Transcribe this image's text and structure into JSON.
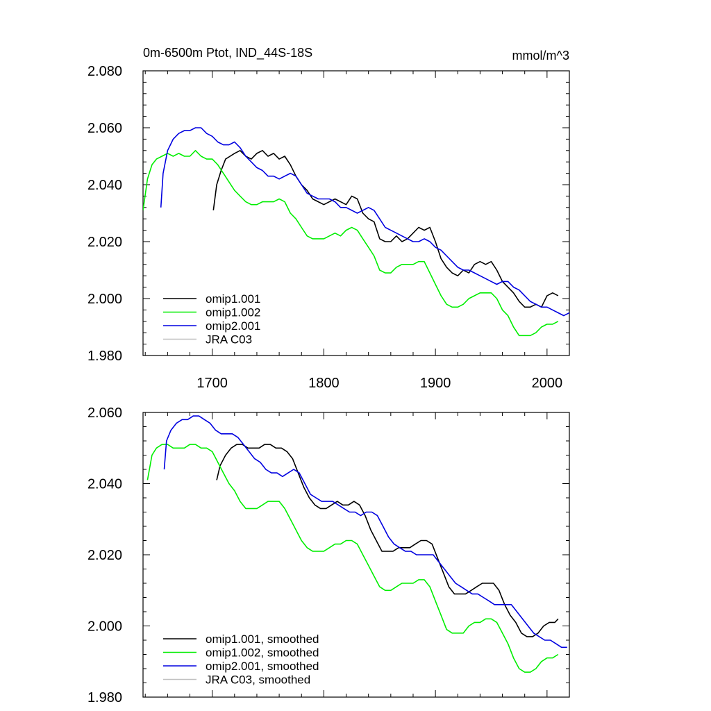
{
  "colors": {
    "omip1_001": "#000000",
    "omip1_002": "#00ee00",
    "omip2_001": "#0000e0",
    "jra_c03": "#c0c0c0"
  },
  "chart_data": [
    {
      "type": "line",
      "title": "0m-6500m Ptot, IND_44S-18S",
      "units": "mmol/m^3",
      "xlim": [
        1638,
        2020
      ],
      "ylim": [
        1.98,
        2.08
      ],
      "yticks": [
        "1.980",
        "2.000",
        "2.020",
        "2.040",
        "2.060",
        "2.080"
      ],
      "xticks": [
        "1700",
        "1800",
        "1900",
        "2000"
      ],
      "grid": false,
      "legend_position": "bottom-left",
      "series": [
        {
          "name": "omip1.001",
          "color_key": "omip1_001",
          "x": [
            1701,
            1704,
            1708,
            1712,
            1716,
            1720,
            1725,
            1730,
            1735,
            1740,
            1745,
            1750,
            1755,
            1760,
            1765,
            1770,
            1775,
            1780,
            1785,
            1790,
            1795,
            1800,
            1805,
            1810,
            1815,
            1820,
            1825,
            1830,
            1835,
            1840,
            1845,
            1850,
            1855,
            1860,
            1865,
            1870,
            1875,
            1880,
            1885,
            1890,
            1895,
            1900,
            1905,
            1910,
            1915,
            1920,
            1925,
            1930,
            1935,
            1940,
            1945,
            1950,
            1955,
            1960,
            1965,
            1970,
            1975,
            1980,
            1985,
            1990,
            1995,
            2000,
            2005,
            2010
          ],
          "y": [
            2.031,
            2.04,
            2.045,
            2.049,
            2.05,
            2.051,
            2.052,
            2.05,
            2.049,
            2.051,
            2.052,
            2.05,
            2.051,
            2.049,
            2.05,
            2.047,
            2.043,
            2.04,
            2.038,
            2.035,
            2.034,
            2.033,
            2.034,
            2.035,
            2.034,
            2.033,
            2.036,
            2.035,
            2.03,
            2.028,
            2.027,
            2.021,
            2.02,
            2.02,
            2.022,
            2.02,
            2.021,
            2.023,
            2.025,
            2.024,
            2.025,
            2.02,
            2.014,
            2.011,
            2.009,
            2.008,
            2.01,
            2.009,
            2.012,
            2.013,
            2.012,
            2.013,
            2.01,
            2.006,
            2.004,
            2.002,
            1.999,
            1.997,
            1.997,
            1.998,
            1.997,
            2.001,
            2.002,
            2.001
          ]
        },
        {
          "name": "omip1.002",
          "color_key": "omip1_002",
          "x": [
            1638,
            1642,
            1646,
            1650,
            1655,
            1660,
            1665,
            1670,
            1675,
            1680,
            1685,
            1690,
            1695,
            1700,
            1705,
            1710,
            1715,
            1720,
            1725,
            1730,
            1735,
            1740,
            1745,
            1750,
            1755,
            1760,
            1765,
            1770,
            1775,
            1780,
            1785,
            1790,
            1795,
            1800,
            1805,
            1810,
            1815,
            1820,
            1825,
            1830,
            1835,
            1840,
            1845,
            1850,
            1855,
            1860,
            1865,
            1870,
            1875,
            1880,
            1885,
            1890,
            1895,
            1900,
            1905,
            1910,
            1915,
            1920,
            1925,
            1930,
            1935,
            1940,
            1945,
            1950,
            1955,
            1960,
            1965,
            1970,
            1975,
            1980,
            1985,
            1990,
            1995,
            2000,
            2005,
            2010
          ],
          "y": [
            2.031,
            2.042,
            2.047,
            2.049,
            2.05,
            2.051,
            2.05,
            2.051,
            2.05,
            2.05,
            2.052,
            2.05,
            2.049,
            2.049,
            2.047,
            2.044,
            2.041,
            2.038,
            2.036,
            2.034,
            2.033,
            2.033,
            2.034,
            2.034,
            2.034,
            2.035,
            2.034,
            2.03,
            2.028,
            2.025,
            2.022,
            2.021,
            2.021,
            2.021,
            2.022,
            2.023,
            2.022,
            2.024,
            2.025,
            2.024,
            2.021,
            2.018,
            2.015,
            2.01,
            2.009,
            2.009,
            2.011,
            2.012,
            2.012,
            2.012,
            2.013,
            2.013,
            2.009,
            2.005,
            2.001,
            1.998,
            1.997,
            1.997,
            1.998,
            2.0,
            2.001,
            2.002,
            2.002,
            2.002,
            2.0,
            1.996,
            1.994,
            1.99,
            1.987,
            1.987,
            1.987,
            1.988,
            1.99,
            1.991,
            1.991,
            1.992
          ]
        },
        {
          "name": "omip2.001",
          "color_key": "omip2_001",
          "x": [
            1654,
            1656,
            1660,
            1665,
            1670,
            1675,
            1680,
            1685,
            1690,
            1695,
            1700,
            1705,
            1710,
            1715,
            1720,
            1725,
            1730,
            1735,
            1740,
            1745,
            1750,
            1755,
            1760,
            1765,
            1770,
            1775,
            1780,
            1785,
            1790,
            1795,
            1800,
            1805,
            1810,
            1815,
            1820,
            1825,
            1830,
            1835,
            1840,
            1845,
            1850,
            1855,
            1860,
            1865,
            1870,
            1875,
            1880,
            1885,
            1890,
            1895,
            1900,
            1905,
            1910,
            1915,
            1920,
            1925,
            1930,
            1935,
            1940,
            1945,
            1950,
            1955,
            1960,
            1965,
            1970,
            1975,
            1980,
            1985,
            1990,
            1995,
            2000,
            2005,
            2010,
            2015,
            2020
          ],
          "y": [
            2.032,
            2.044,
            2.052,
            2.056,
            2.058,
            2.059,
            2.059,
            2.06,
            2.06,
            2.058,
            2.057,
            2.055,
            2.054,
            2.054,
            2.055,
            2.053,
            2.05,
            2.048,
            2.046,
            2.045,
            2.043,
            2.043,
            2.042,
            2.043,
            2.044,
            2.043,
            2.04,
            2.037,
            2.036,
            2.035,
            2.035,
            2.035,
            2.034,
            2.032,
            2.032,
            2.031,
            2.03,
            2.031,
            2.032,
            2.031,
            2.028,
            2.025,
            2.024,
            2.023,
            2.022,
            2.021,
            2.02,
            2.02,
            2.021,
            2.02,
            2.018,
            2.017,
            2.015,
            2.013,
            2.011,
            2.01,
            2.01,
            2.009,
            2.008,
            2.007,
            2.006,
            2.005,
            2.006,
            2.006,
            2.004,
            2.003,
            2.001,
            1.999,
            1.998,
            1.997,
            1.997,
            1.996,
            1.995,
            1.994,
            1.995
          ]
        },
        {
          "name": "JRA C03",
          "color_key": "jra_c03",
          "x": [],
          "y": []
        }
      ]
    },
    {
      "type": "line",
      "title": "",
      "units": "",
      "xlim": [
        1638,
        2020
      ],
      "ylim": [
        1.98,
        2.06
      ],
      "yticks": [
        "1.980",
        "2.000",
        "2.020",
        "2.040",
        "2.060"
      ],
      "xticks": [],
      "grid": false,
      "legend_position": "bottom-left",
      "series": [
        {
          "name": "omip1.001, smoothed",
          "color_key": "omip1_001",
          "x": [
            1704,
            1707,
            1712,
            1717,
            1722,
            1727,
            1732,
            1737,
            1742,
            1747,
            1752,
            1757,
            1762,
            1767,
            1772,
            1777,
            1782,
            1787,
            1792,
            1797,
            1802,
            1807,
            1812,
            1817,
            1822,
            1827,
            1832,
            1837,
            1842,
            1847,
            1852,
            1857,
            1862,
            1867,
            1872,
            1877,
            1882,
            1887,
            1892,
            1897,
            1902,
            1907,
            1912,
            1917,
            1922,
            1927,
            1932,
            1937,
            1942,
            1947,
            1952,
            1957,
            1962,
            1967,
            1972,
            1977,
            1982,
            1987,
            1992,
            1997,
            2002,
            2007,
            2010
          ],
          "y": [
            2.041,
            2.045,
            2.048,
            2.05,
            2.051,
            2.051,
            2.05,
            2.05,
            2.05,
            2.051,
            2.051,
            2.05,
            2.05,
            2.049,
            2.047,
            2.043,
            2.039,
            2.036,
            2.034,
            2.033,
            2.033,
            2.034,
            2.035,
            2.034,
            2.034,
            2.035,
            2.034,
            2.031,
            2.027,
            2.024,
            2.021,
            2.021,
            2.021,
            2.022,
            2.022,
            2.022,
            2.023,
            2.024,
            2.024,
            2.023,
            2.019,
            2.015,
            2.011,
            2.009,
            2.009,
            2.009,
            2.01,
            2.011,
            2.012,
            2.012,
            2.012,
            2.01,
            2.006,
            2.003,
            2.001,
            1.998,
            1.997,
            1.997,
            1.998,
            2.0,
            2.001,
            2.001,
            2.002
          ]
        },
        {
          "name": "omip1.002, smoothed",
          "color_key": "omip1_002",
          "x": [
            1642,
            1646,
            1650,
            1655,
            1660,
            1665,
            1670,
            1675,
            1680,
            1685,
            1690,
            1695,
            1700,
            1705,
            1710,
            1715,
            1720,
            1725,
            1730,
            1735,
            1740,
            1745,
            1750,
            1755,
            1760,
            1765,
            1770,
            1775,
            1780,
            1785,
            1790,
            1795,
            1800,
            1805,
            1810,
            1815,
            1820,
            1825,
            1830,
            1835,
            1840,
            1845,
            1850,
            1855,
            1860,
            1865,
            1870,
            1875,
            1880,
            1885,
            1890,
            1895,
            1900,
            1905,
            1910,
            1915,
            1920,
            1925,
            1930,
            1935,
            1940,
            1945,
            1950,
            1955,
            1960,
            1965,
            1970,
            1975,
            1980,
            1985,
            1990,
            1995,
            2000,
            2005,
            2010
          ],
          "y": [
            2.041,
            2.048,
            2.05,
            2.051,
            2.051,
            2.05,
            2.05,
            2.05,
            2.051,
            2.051,
            2.05,
            2.05,
            2.049,
            2.046,
            2.043,
            2.04,
            2.038,
            2.035,
            2.033,
            2.033,
            2.033,
            2.034,
            2.035,
            2.035,
            2.035,
            2.033,
            2.03,
            2.027,
            2.024,
            2.022,
            2.021,
            2.021,
            2.021,
            2.022,
            2.023,
            2.023,
            2.024,
            2.024,
            2.023,
            2.02,
            2.017,
            2.014,
            2.011,
            2.01,
            2.01,
            2.011,
            2.012,
            2.012,
            2.012,
            2.013,
            2.013,
            2.011,
            2.007,
            2.003,
            1.999,
            1.998,
            1.998,
            1.998,
            2.0,
            2.001,
            2.001,
            2.002,
            2.002,
            2.001,
            1.998,
            1.995,
            1.991,
            1.988,
            1.987,
            1.987,
            1.988,
            1.99,
            1.991,
            1.991,
            1.992
          ]
        },
        {
          "name": "omip2.001, smoothed",
          "color_key": "omip2_001",
          "x": [
            1657,
            1659,
            1663,
            1668,
            1673,
            1678,
            1683,
            1688,
            1693,
            1698,
            1703,
            1708,
            1713,
            1718,
            1723,
            1728,
            1733,
            1738,
            1743,
            1748,
            1753,
            1758,
            1763,
            1768,
            1773,
            1778,
            1783,
            1788,
            1793,
            1798,
            1803,
            1808,
            1813,
            1818,
            1823,
            1828,
            1833,
            1838,
            1843,
            1848,
            1853,
            1858,
            1863,
            1868,
            1873,
            1878,
            1883,
            1888,
            1893,
            1898,
            1903,
            1908,
            1913,
            1918,
            1923,
            1928,
            1933,
            1938,
            1943,
            1948,
            1953,
            1958,
            1963,
            1968,
            1973,
            1978,
            1983,
            1988,
            1993,
            1998,
            2003,
            2008,
            2013,
            2018
          ],
          "y": [
            2.044,
            2.052,
            2.055,
            2.057,
            2.058,
            2.058,
            2.059,
            2.059,
            2.058,
            2.057,
            2.055,
            2.054,
            2.054,
            2.054,
            2.053,
            2.051,
            2.049,
            2.047,
            2.046,
            2.044,
            2.043,
            2.043,
            2.042,
            2.043,
            2.044,
            2.043,
            2.04,
            2.037,
            2.036,
            2.035,
            2.035,
            2.035,
            2.034,
            2.033,
            2.032,
            2.032,
            2.031,
            2.032,
            2.032,
            2.031,
            2.028,
            2.025,
            2.023,
            2.022,
            2.021,
            2.021,
            2.02,
            2.02,
            2.02,
            2.02,
            2.018,
            2.016,
            2.014,
            2.012,
            2.011,
            2.01,
            2.009,
            2.009,
            2.008,
            2.007,
            2.006,
            2.006,
            2.006,
            2.006,
            2.004,
            2.002,
            2.0,
            1.998,
            1.997,
            1.996,
            1.996,
            1.995,
            1.994,
            1.994
          ]
        },
        {
          "name": "JRA C03, smoothed",
          "color_key": "jra_c03",
          "x": [],
          "y": []
        }
      ]
    }
  ]
}
